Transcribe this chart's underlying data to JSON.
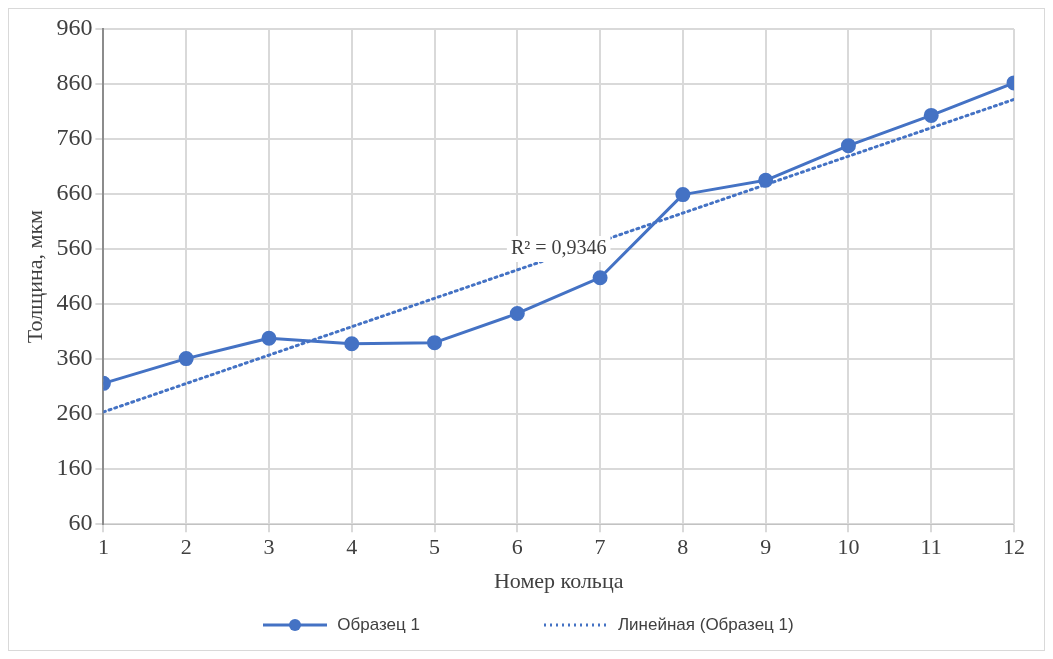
{
  "chart_data": {
    "type": "line",
    "xlabel": "Номер кольца",
    "ylabel": "Толщина, мкм",
    "x": [
      1,
      2,
      3,
      4,
      5,
      6,
      7,
      8,
      9,
      10,
      11,
      12
    ],
    "xlim": [
      1,
      12
    ],
    "xticks": [
      1,
      2,
      3,
      4,
      5,
      6,
      7,
      8,
      9,
      10,
      11,
      12
    ],
    "ylim": [
      60,
      960
    ],
    "yticks": [
      60,
      160,
      260,
      360,
      460,
      560,
      660,
      760,
      860,
      960
    ],
    "grid": true,
    "legend": "bottom",
    "series": [
      {
        "name": "Образец 1",
        "color": "#4472c4",
        "marker": "circle",
        "line_style": "solid",
        "values": [
          316,
          361,
          398,
          388,
          390,
          443,
          508,
          659,
          685,
          748,
          803,
          862
        ]
      },
      {
        "name": "Линейная (Образец 1)",
        "color": "#4472c4",
        "marker": "none",
        "line_style": "dotted",
        "x": [
          1,
          12
        ],
        "values": [
          264,
          832
        ]
      }
    ],
    "annotations": [
      {
        "text": "R² = 0,9346",
        "x": 6.5,
        "y": 560
      }
    ]
  }
}
